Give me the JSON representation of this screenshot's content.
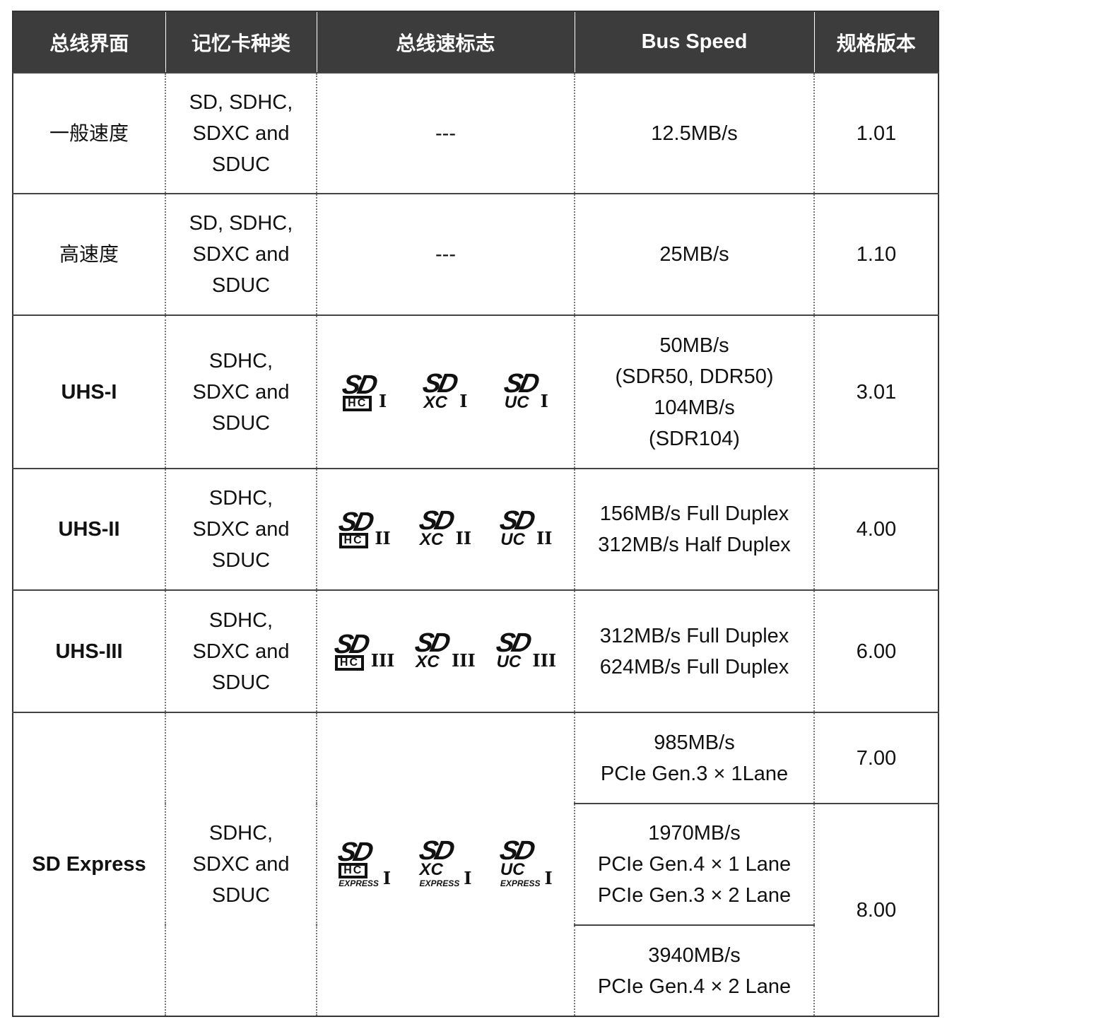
{
  "headers": [
    "总线界面",
    "记忆卡种类",
    "总线速标志",
    "Bus Speed",
    "规格版本"
  ],
  "rows": [
    {
      "interface": "一般速度",
      "cards": [
        "SD, SDHC,",
        "SDXC and",
        "SDUC"
      ],
      "logo_text": "---",
      "speed": [
        "12.5MB/s"
      ],
      "version": "1.01"
    },
    {
      "interface": "高速度",
      "cards": [
        "SD, SDHC,",
        "SDXC and",
        "SDUC"
      ],
      "logo_text": "---",
      "speed": [
        "25MB/s"
      ],
      "version": "1.10"
    },
    {
      "interface": "UHS-I",
      "cards": [
        "SDHC,",
        "SDXC and",
        "SDUC"
      ],
      "logos": [
        {
          "top": "SD",
          "bottom": "HC",
          "class": "I"
        },
        {
          "top": "SD",
          "bottom": "XC",
          "class": "I"
        },
        {
          "top": "SD",
          "bottom": "UC",
          "class": "I"
        }
      ],
      "speed": [
        "50MB/s",
        "(SDR50, DDR50)",
        "104MB/s",
        "(SDR104)"
      ],
      "version": "3.01"
    },
    {
      "interface": "UHS-II",
      "cards": [
        "SDHC,",
        "SDXC and",
        "SDUC"
      ],
      "logos": [
        {
          "top": "SD",
          "bottom": "HC",
          "class": "II"
        },
        {
          "top": "SD",
          "bottom": "XC",
          "class": "II"
        },
        {
          "top": "SD",
          "bottom": "UC",
          "class": "II"
        }
      ],
      "speed": [
        "156MB/s Full Duplex",
        "312MB/s Half Duplex"
      ],
      "version": "4.00"
    },
    {
      "interface": "UHS-III",
      "cards": [
        "SDHC,",
        "SDXC and",
        "SDUC"
      ],
      "logos": [
        {
          "top": "SD",
          "bottom": "HC",
          "class": "III"
        },
        {
          "top": "SD",
          "bottom": "XC",
          "class": "III"
        },
        {
          "top": "SD",
          "bottom": "UC",
          "class": "III"
        }
      ],
      "speed": [
        "312MB/s Full Duplex",
        "624MB/s Full Duplex"
      ],
      "version": "6.00"
    },
    {
      "interface": "SD Express",
      "cards": [
        "SDHC,",
        "SDXC and",
        "SDUC"
      ],
      "logos": [
        {
          "top": "SD",
          "bottom": "HC",
          "class": "I",
          "extra": "EXPRESS"
        },
        {
          "top": "SD",
          "bottom": "XC",
          "class": "I",
          "extra": "EXPRESS"
        },
        {
          "top": "SD",
          "bottom": "UC",
          "class": "I",
          "extra": "EXPRESS"
        }
      ],
      "speeds": [
        [
          "985MB/s",
          "PCIe Gen.3 × 1Lane"
        ],
        [
          "1970MB/s",
          "PCIe Gen.4 × 1 Lane",
          "PCIe Gen.3 × 2 Lane"
        ],
        [
          "3940MB/s",
          "PCIe Gen.4 × 2 Lane"
        ]
      ],
      "versions": [
        "7.00",
        "8.00"
      ]
    }
  ]
}
